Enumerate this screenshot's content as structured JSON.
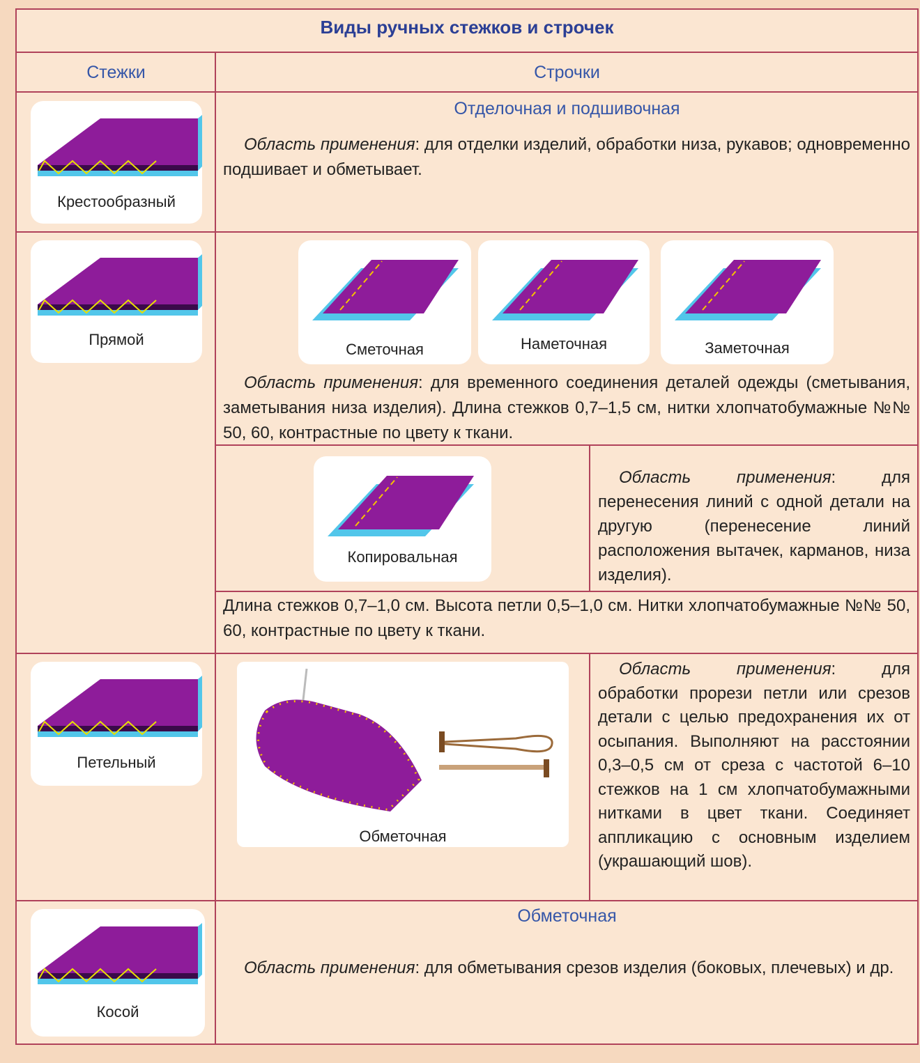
{
  "title": "Виды ручных стежков и строчек",
  "header": {
    "stitches": "Стежки",
    "seams": "Строчки"
  },
  "rows": [
    {
      "stitch": "Крестообразный",
      "seam": "Отделочная и подшивочная",
      "usage_label": "Область применения",
      "usage_text": ": для отделки изделий, обработки низа, рукавов; одновременно подшивает и обметывает."
    },
    {
      "stitch": "Прямой",
      "images": [
        "Сметочная",
        "Наметочная",
        "Заметочная"
      ],
      "usage_label": "Область применения",
      "usage_text": ": для временного соединения деталей одежды (сметывания, заметывания низа изделия). Длина стежков 0,7–1,5 см, нитки хлопчатобумажные №№ 50, 60, контрастные по цвету к ткани.",
      "sub_image": "Копировальная",
      "sub_usage_label": "Область применения",
      "sub_usage_text": ": для перенесения линий с одной детали на другую (перенесение линий расположения вытачек, карманов, низа изделия).",
      "note": "Длина стежков 0,7–1,0 см. Высота петли 0,5–1,0 см. Нитки хлопчатобумажные №№ 50, 60, контрастные по цвету к ткани."
    },
    {
      "stitch": "Петельный",
      "image": "Обметочная",
      "usage_label": "Область применения",
      "usage_text": ": для обработки прорези петли или срезов детали с целью предохранения их от осыпания. Выполняют на расстоянии 0,3–0,5 см от среза с частотой 6–10 стежков на 1 см хлопчатобумажными нитками в цвет ткани. Соединяет аппликацию с основным изделием (украшающий шов)."
    },
    {
      "stitch": "Косой",
      "seam": "Обметочная",
      "usage_label": "Область применения",
      "usage_text": ": для обметывания срезов изделия (боковых, плечевых) и др."
    }
  ]
}
